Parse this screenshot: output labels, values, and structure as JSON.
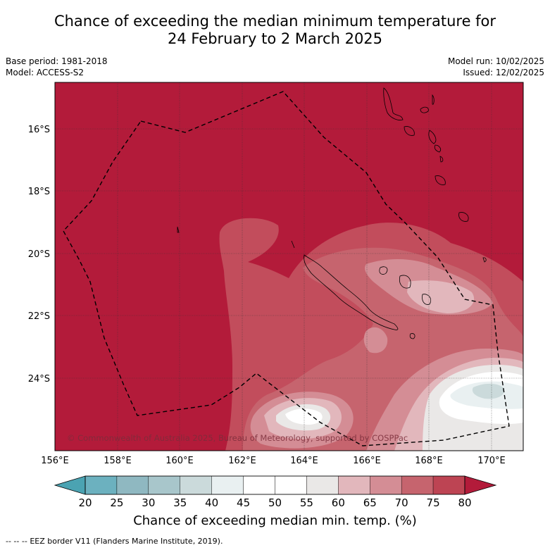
{
  "title": {
    "line1": "Chance of exceeding the median minimum temperature for",
    "line2": "24 February to 2 March 2025"
  },
  "header": {
    "base_period": "Base period: 1981-2018",
    "model": "Model: ACCESS-S2",
    "model_run": "Model run: 10/02/2025",
    "issued": "Issued: 12/02/2025"
  },
  "map": {
    "lon_range": [
      156,
      171
    ],
    "lat_range": [
      -26.5,
      -14.7
    ],
    "lon_ticks": [
      "156°E",
      "158°E",
      "160°E",
      "162°E",
      "164°E",
      "166°E",
      "168°E",
      "170°E"
    ],
    "lat_ticks": [
      "16°S",
      "18°S",
      "20°S",
      "22°S",
      "24°S"
    ],
    "copyright": "© Commonwealth of Australia 2025, Bureau of Meteorology, supported by COSPPac",
    "background_color": "#b31b3a"
  },
  "colorbar": {
    "ticks": [
      "20",
      "25",
      "30",
      "35",
      "40",
      "45",
      "50",
      "55",
      "60",
      "65",
      "70",
      "75",
      "80"
    ],
    "colors": [
      "#4ba3b2",
      "#6cb1bf",
      "#8fb8c1",
      "#a8c6cb",
      "#cbdadb",
      "#e9f0f1",
      "#ffffff",
      "#ffffff",
      "#eae8e7",
      "#e2b7bc",
      "#d48d95",
      "#c6646e",
      "#bd4453",
      "#b31b3a"
    ],
    "label": "Chance of exceeding median min. temp. (%)"
  },
  "legend": {
    "eez": "EEZ border V11 (Flanders Marine Institute, 2019)."
  }
}
